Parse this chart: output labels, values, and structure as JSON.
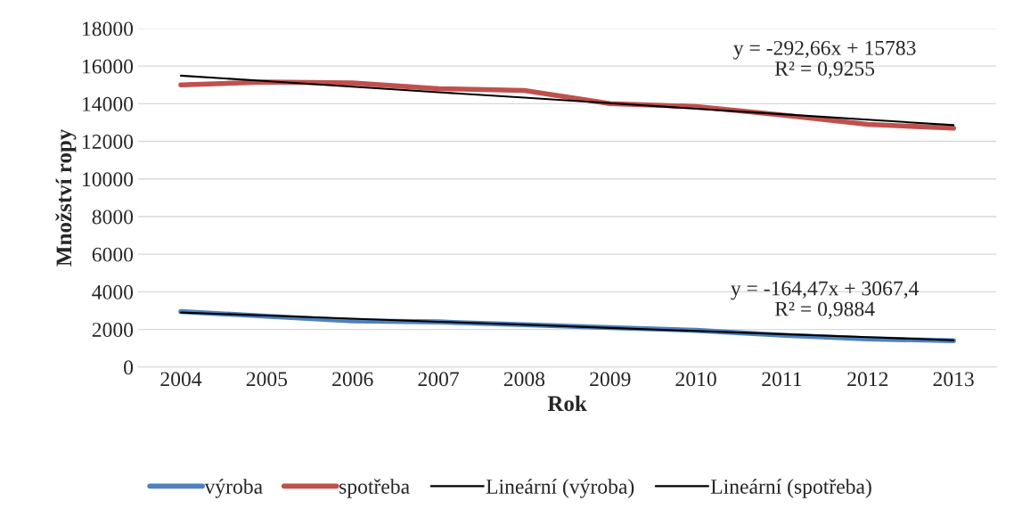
{
  "chart_data": {
    "type": "line",
    "xlabel": "Rok",
    "ylabel": "Množství ropy",
    "categories": [
      "2004",
      "2005",
      "2006",
      "2007",
      "2008",
      "2009",
      "2010",
      "2011",
      "2012",
      "2013"
    ],
    "series": [
      {
        "name": "výroba",
        "color": "#4f81bd",
        "values": [
          2950,
          2700,
          2450,
          2400,
          2250,
          2100,
          1950,
          1700,
          1500,
          1400
        ]
      },
      {
        "name": "spotřeba",
        "color": "#c0504d",
        "values": [
          15000,
          15150,
          15100,
          14800,
          14700,
          14000,
          13850,
          13400,
          12900,
          12700
        ]
      },
      {
        "name": "Lineární (výroba)",
        "color": "#000000",
        "values": [
          2900,
          2740,
          2570,
          2410,
          2250,
          2080,
          1920,
          1750,
          1590,
          1420
        ]
      },
      {
        "name": "Lineární (spotřeba)",
        "color": "#000000",
        "values": [
          15490,
          15200,
          14900,
          14610,
          14320,
          14030,
          13730,
          13440,
          13150,
          12860
        ]
      }
    ],
    "ylim": [
      0,
      18000
    ],
    "yticks": [
      0,
      2000,
      4000,
      6000,
      8000,
      10000,
      12000,
      14000,
      16000,
      18000
    ],
    "grid": "y",
    "legend": "bottom",
    "marker": "none",
    "line_style": "solid",
    "annotations": [
      "y = -292,66x + 15783\nR² = 0,9255",
      "y = -164,47x + 3067,4\nR² = 0,9884"
    ]
  }
}
